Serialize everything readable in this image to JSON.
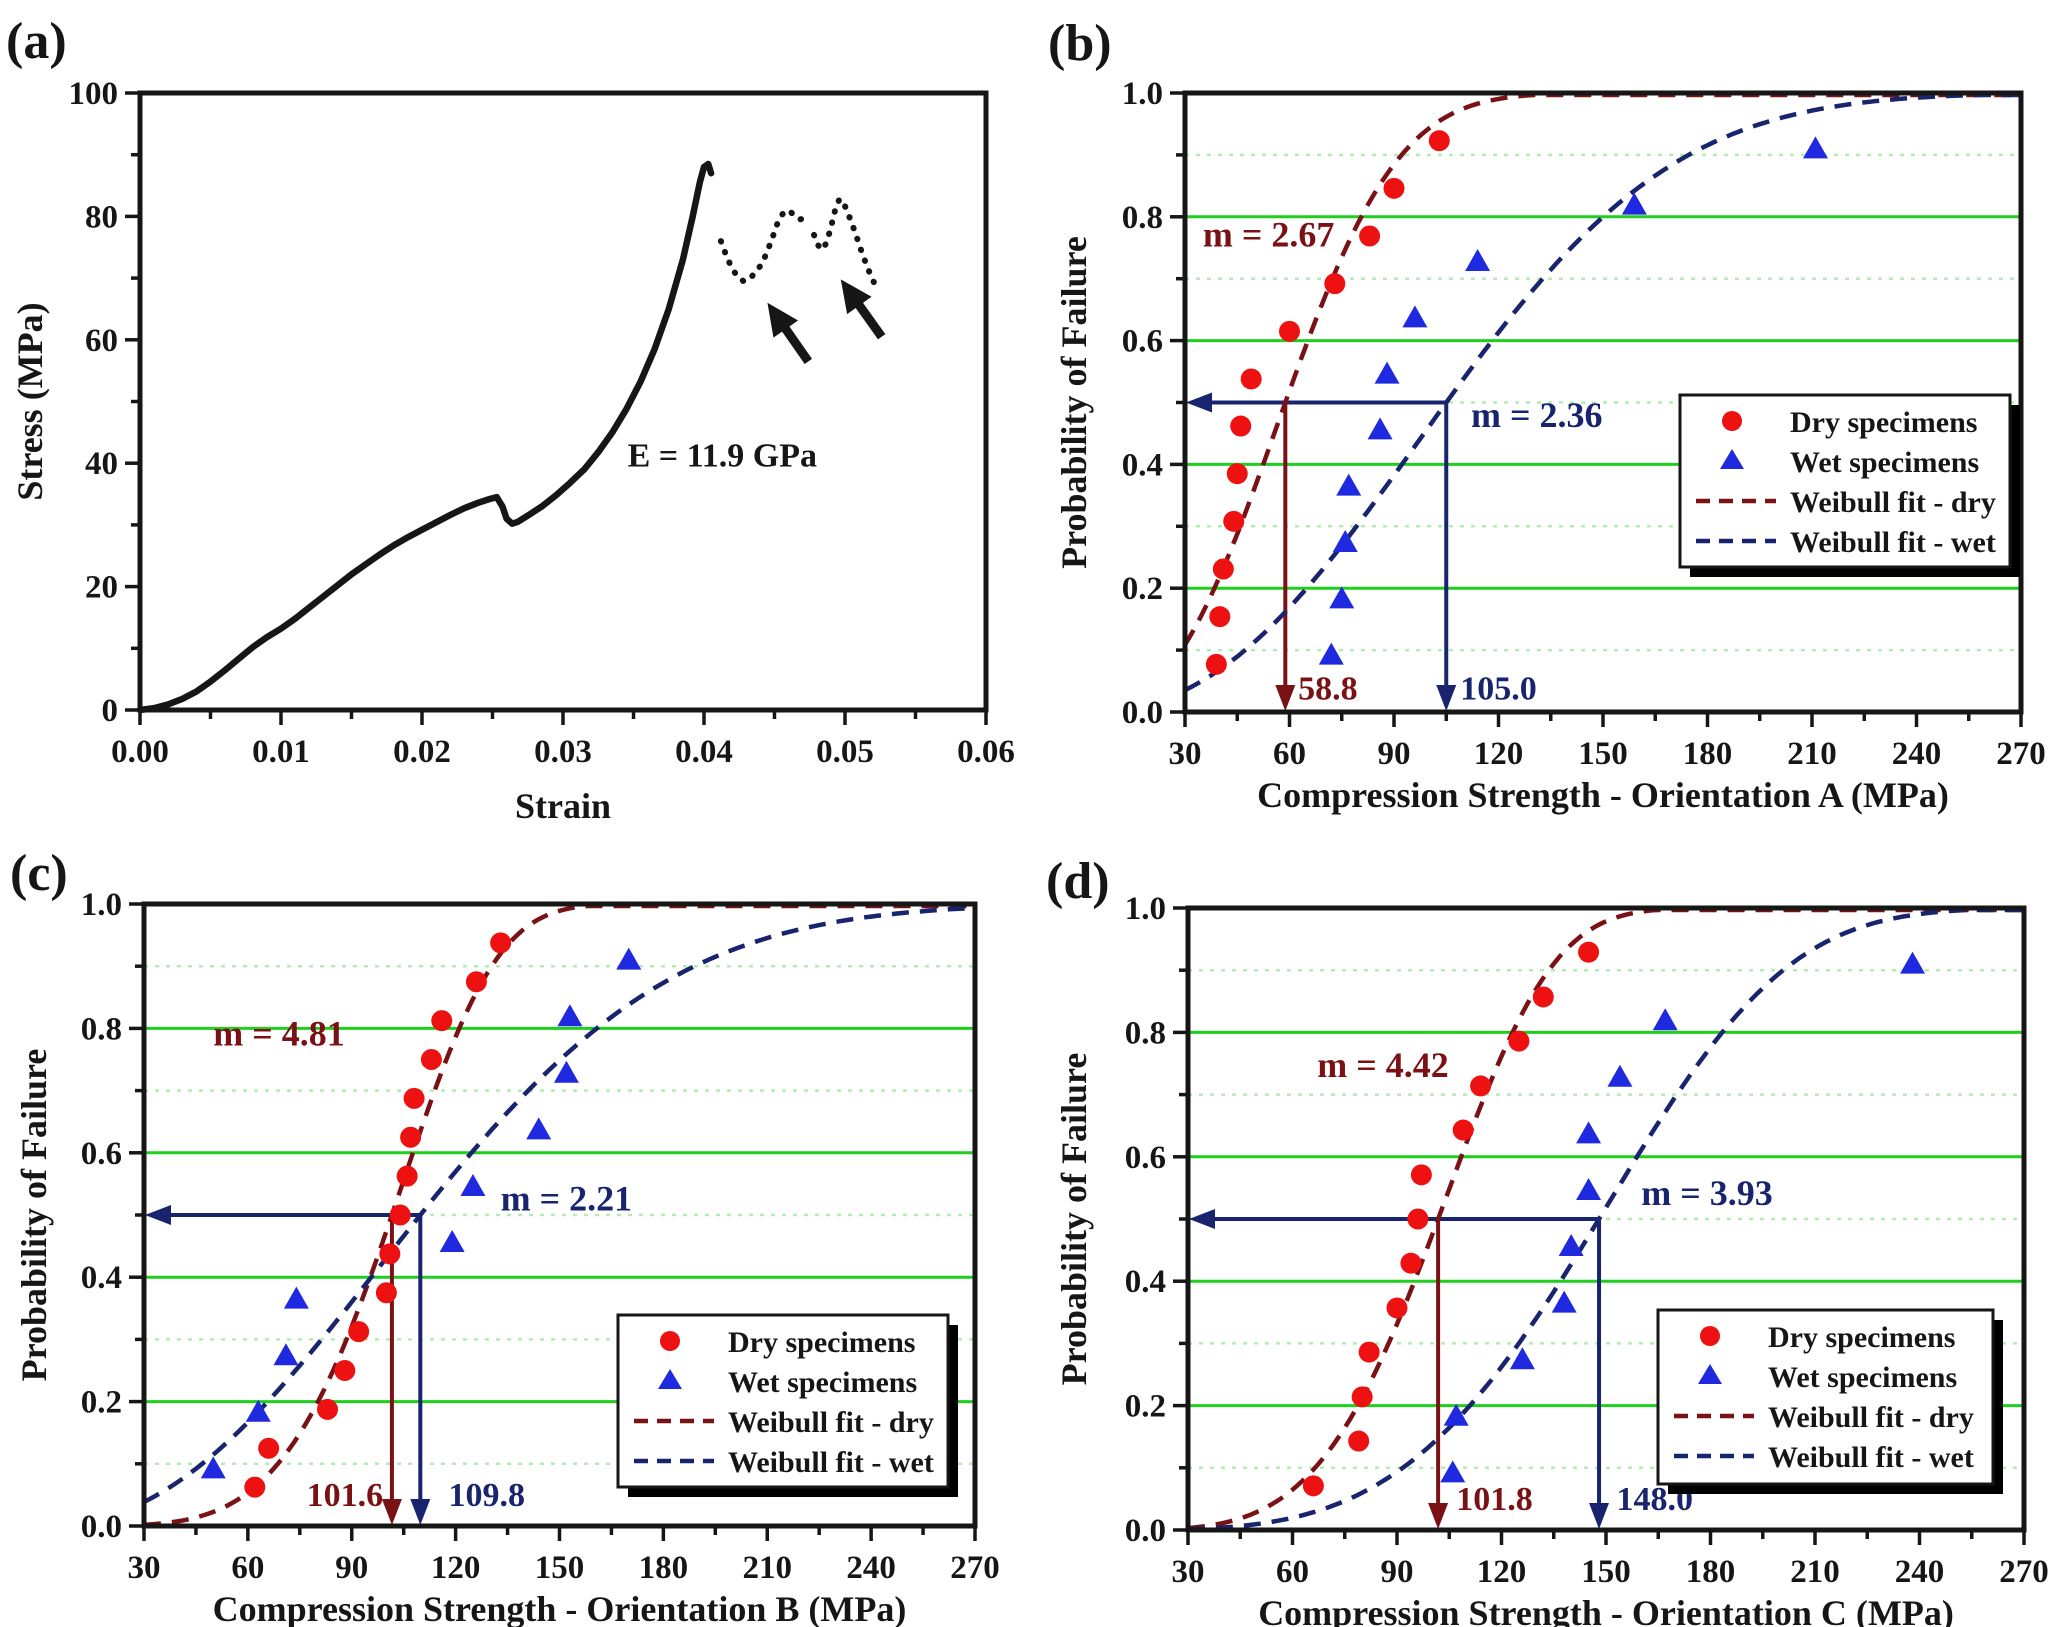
{
  "figure_title": "",
  "colors": {
    "black": "#161616",
    "dry_red": "#ee1111",
    "wet_blue": "#1f2ae0",
    "weibull_dry_darkred": "#7a1115",
    "weibull_wet_navy": "#19246e",
    "grid_major_green": "#1ecf1e",
    "grid_minor_green": "#b5ecb5",
    "background": "#ffffff"
  },
  "legend": {
    "items": [
      {
        "marker": "dry-circle-icon",
        "label": "Dry specimens"
      },
      {
        "marker": "wet-triangle-icon",
        "label": "Wet specimens"
      },
      {
        "marker": "dash-darkred-icon",
        "label": "Weibull fit - dry"
      },
      {
        "marker": "dash-navy-icon",
        "label": "Weibull fit - wet"
      }
    ]
  },
  "chart_data": [
    {
      "id": "a",
      "letter": "(a)",
      "type": "line",
      "xlabel": "Strain",
      "ylabel": "Stress (MPa)",
      "xlim": [
        0,
        0.06
      ],
      "ylim": [
        0,
        100
      ],
      "xticks": [
        0,
        0.01,
        0.02,
        0.03,
        0.04,
        0.05,
        0.06
      ],
      "xtick_labels": [
        "0.00",
        "0.01",
        "0.02",
        "0.03",
        "0.04",
        "0.05",
        "0.06"
      ],
      "yticks": [
        0,
        20,
        40,
        60,
        80,
        100
      ],
      "ytick_labels": [
        "0",
        "20",
        "40",
        "60",
        "80",
        "100"
      ],
      "grid": "off",
      "annotation": {
        "text": "E = 11.9 GPa",
        "x": 0.0413,
        "y": 39.5
      },
      "series": [
        {
          "name": "stress-strain-solid",
          "style": "solid",
          "points": [
            [
              0,
              0
            ],
            [
              0.001,
              0.3
            ],
            [
              0.002,
              0.9
            ],
            [
              0.003,
              1.8
            ],
            [
              0.004,
              3
            ],
            [
              0.005,
              4.6
            ],
            [
              0.006,
              6.4
            ],
            [
              0.007,
              8.3
            ],
            [
              0.008,
              10.2
            ],
            [
              0.009,
              11.8
            ],
            [
              0.01,
              13.2
            ],
            [
              0.011,
              14.8
            ],
            [
              0.012,
              16.6
            ],
            [
              0.013,
              18.4
            ],
            [
              0.014,
              20.2
            ],
            [
              0.015,
              22
            ],
            [
              0.016,
              23.6
            ],
            [
              0.017,
              25.2
            ],
            [
              0.018,
              26.7
            ],
            [
              0.019,
              28
            ],
            [
              0.02,
              29.2
            ],
            [
              0.021,
              30.4
            ],
            [
              0.022,
              31.6
            ],
            [
              0.023,
              32.7
            ],
            [
              0.024,
              33.6
            ],
            [
              0.0248,
              34.2
            ],
            [
              0.0253,
              34.5
            ],
            [
              0.0257,
              33
            ],
            [
              0.026,
              31
            ],
            [
              0.0264,
              30.2
            ],
            [
              0.0268,
              30.5
            ],
            [
              0.0275,
              31.5
            ],
            [
              0.0285,
              33
            ],
            [
              0.0295,
              34.8
            ],
            [
              0.0305,
              36.8
            ],
            [
              0.0315,
              39
            ],
            [
              0.0325,
              41.8
            ],
            [
              0.0335,
              45
            ],
            [
              0.0345,
              48.8
            ],
            [
              0.0355,
              53.2
            ],
            [
              0.0365,
              58.5
            ],
            [
              0.0375,
              65
            ],
            [
              0.0385,
              73
            ],
            [
              0.0392,
              80
            ],
            [
              0.0397,
              85.5
            ],
            [
              0.04,
              88
            ],
            [
              0.0403,
              88.5
            ],
            [
              0.0405,
              87
            ]
          ]
        },
        {
          "name": "post-peak-dotted-1",
          "style": "dotted",
          "points": [
            [
              0.0412,
              76
            ],
            [
              0.0416,
              73.5
            ],
            [
              0.042,
              71.5
            ],
            [
              0.0424,
              70.2
            ],
            [
              0.0428,
              69.5
            ],
            [
              0.0432,
              69.8
            ],
            [
              0.0436,
              70.8
            ],
            [
              0.044,
              72
            ],
            [
              0.0444,
              73.8
            ],
            [
              0.0448,
              76.2
            ],
            [
              0.0452,
              78.8
            ],
            [
              0.0456,
              80.5
            ],
            [
              0.046,
              81
            ],
            [
              0.0464,
              80.2
            ],
            [
              0.0468,
              79.5
            ],
            [
              0.0472,
              79.8
            ]
          ]
        },
        {
          "name": "post-peak-dotted-2",
          "style": "dotted",
          "points": [
            [
              0.0478,
              77
            ],
            [
              0.0481,
              75.3
            ],
            [
              0.0484,
              74.6
            ],
            [
              0.0487,
              75.8
            ],
            [
              0.049,
              78.2
            ],
            [
              0.0493,
              81
            ],
            [
              0.0496,
              82.8
            ],
            [
              0.0499,
              82.2
            ],
            [
              0.0503,
              80
            ],
            [
              0.0507,
              77.5
            ],
            [
              0.0511,
              74.8
            ],
            [
              0.0515,
              72.3
            ],
            [
              0.0519,
              70
            ],
            [
              0.0523,
              68.2
            ]
          ]
        }
      ],
      "arrows": [
        {
          "from": [
            0.0474,
            56.5
          ],
          "to": [
            0.0445,
            66
          ]
        },
        {
          "from": [
            0.0526,
            60.5
          ],
          "to": [
            0.0497,
            69.8
          ]
        }
      ]
    },
    {
      "id": "b",
      "letter": "(b)",
      "type": "scatter",
      "xlabel": "Compression Strength - Orientation A (MPa)",
      "ylabel": "Probability of Failure",
      "xlim": [
        30,
        270
      ],
      "ylim": [
        0,
        1
      ],
      "xticks": [
        30,
        60,
        90,
        120,
        150,
        180,
        210,
        240,
        270
      ],
      "xtick_labels": [
        "30",
        "60",
        "90",
        "120",
        "150",
        "180",
        "210",
        "240",
        "270"
      ],
      "yticks": [
        0,
        0.2,
        0.4,
        0.6,
        0.8,
        1.0
      ],
      "ytick_labels": [
        "0.0",
        "0.2",
        "0.4",
        "0.6",
        "0.8",
        "1.0"
      ],
      "grid": "green major solid at 0.2 steps, pale dotted at 0.1 steps",
      "series": [
        {
          "name": "Dry specimens",
          "marker": "circle",
          "points": [
            [
              39,
              0.077
            ],
            [
              40,
              0.154
            ],
            [
              41,
              0.231
            ],
            [
              44,
              0.308
            ],
            [
              45,
              0.385
            ],
            [
              46,
              0.462
            ],
            [
              49,
              0.538
            ],
            [
              60,
              0.615
            ],
            [
              73,
              0.692
            ],
            [
              83,
              0.769
            ],
            [
              90,
              0.846
            ],
            [
              103,
              0.923
            ]
          ]
        },
        {
          "name": "Wet specimens",
          "marker": "triangle",
          "points": [
            [
              72,
              0.091
            ],
            [
              75,
              0.182
            ],
            [
              76,
              0.273
            ],
            [
              77,
              0.364
            ],
            [
              86,
              0.455
            ],
            [
              88,
              0.545
            ],
            [
              96,
              0.636
            ],
            [
              114,
              0.727
            ],
            [
              159,
              0.818
            ],
            [
              211,
              0.909
            ]
          ]
        }
      ],
      "weibull_fits": [
        {
          "name": "Weibull fit - dry",
          "m": 2.67,
          "median": 58.8
        },
        {
          "name": "Weibull fit - wet",
          "m": 2.36,
          "median": 105.0
        }
      ],
      "m_labels": [
        {
          "text": "m = 2.67",
          "x": 54,
          "y": 0.77,
          "color": "darkred"
        },
        {
          "text": "m = 2.36",
          "x": 131,
          "y": 0.478,
          "color": "navy"
        }
      ],
      "guide": {
        "p": 0.5,
        "dry_x": 58.8,
        "wet_x": 105.0,
        "dry_label": "58.8",
        "dry_label_pos": [
          71,
          0.038
        ],
        "wet_label": "105.0",
        "wet_label_pos": [
          120,
          0.038
        ]
      },
      "legend_pos": [
        640,
        395,
        330,
        172
      ]
    },
    {
      "id": "c",
      "letter": "(c)",
      "type": "scatter",
      "xlabel": "Compression Strength - Orientation B (MPa)",
      "ylabel": "Probability of Failure",
      "xlim": [
        30,
        270
      ],
      "ylim": [
        0,
        1
      ],
      "xticks": [
        30,
        60,
        90,
        120,
        150,
        180,
        210,
        240,
        270
      ],
      "xtick_labels": [
        "30",
        "60",
        "90",
        "120",
        "150",
        "180",
        "210",
        "240",
        "270"
      ],
      "yticks": [
        0,
        0.2,
        0.4,
        0.6,
        0.8,
        1.0
      ],
      "ytick_labels": [
        "0.0",
        "0.2",
        "0.4",
        "0.6",
        "0.8",
        "1.0"
      ],
      "grid": "green major solid at 0.2 steps, pale dotted at 0.1 steps",
      "series": [
        {
          "name": "Dry specimens",
          "marker": "circle",
          "points": [
            [
              62,
              0.0625
            ],
            [
              66,
              0.125
            ],
            [
              83,
              0.1875
            ],
            [
              88,
              0.25
            ],
            [
              92,
              0.3125
            ],
            [
              100,
              0.375
            ],
            [
              101,
              0.4375
            ],
            [
              104,
              0.5
            ],
            [
              106,
              0.5625
            ],
            [
              107,
              0.625
            ],
            [
              108,
              0.6875
            ],
            [
              113,
              0.75
            ],
            [
              116,
              0.8125
            ],
            [
              126,
              0.875
            ],
            [
              133,
              0.9375
            ]
          ]
        },
        {
          "name": "Wet specimens",
          "marker": "triangle",
          "points": [
            [
              50,
              0.091
            ],
            [
              63,
              0.182
            ],
            [
              71,
              0.273
            ],
            [
              74,
              0.364
            ],
            [
              119,
              0.455
            ],
            [
              125,
              0.545
            ],
            [
              144,
              0.636
            ],
            [
              152,
              0.727
            ],
            [
              153,
              0.818
            ],
            [
              170,
              0.909
            ]
          ]
        }
      ],
      "weibull_fits": [
        {
          "name": "Weibull fit - dry",
          "m": 4.81,
          "median": 101.6
        },
        {
          "name": "Weibull fit - wet",
          "m": 2.21,
          "median": 109.8
        }
      ],
      "m_labels": [
        {
          "text": "m = 4.81",
          "x": 69,
          "y": 0.79,
          "color": "darkred"
        },
        {
          "text": "m = 2.21",
          "x": 152,
          "y": 0.525,
          "color": "navy"
        }
      ],
      "guide": {
        "p": 0.5,
        "dry_x": 101.6,
        "wet_x": 109.8,
        "dry_label": "101.6",
        "dry_label_pos": [
          88,
          0.05
        ],
        "wet_label": "109.8",
        "wet_label_pos": [
          129,
          0.05
        ]
      },
      "legend_pos": [
        618,
        485,
        330,
        172
      ]
    },
    {
      "id": "d",
      "letter": "(d)",
      "type": "scatter",
      "xlabel": "Compression Strength - Orientation C (MPa)",
      "ylabel": "Probability of Failure",
      "xlim": [
        30,
        270
      ],
      "ylim": [
        0,
        1
      ],
      "xticks": [
        30,
        60,
        90,
        120,
        150,
        180,
        210,
        240,
        270
      ],
      "xtick_labels": [
        "30",
        "60",
        "90",
        "120",
        "150",
        "180",
        "210",
        "240",
        "270"
      ],
      "yticks": [
        0,
        0.2,
        0.4,
        0.6,
        0.8,
        1.0
      ],
      "ytick_labels": [
        "0.0",
        "0.2",
        "0.4",
        "0.6",
        "0.8",
        "1.0"
      ],
      "grid": "green major solid at 0.2 steps, pale dotted at 0.1 steps",
      "series": [
        {
          "name": "Dry specimens",
          "marker": "circle",
          "points": [
            [
              66,
              0.071
            ],
            [
              79,
              0.143
            ],
            [
              80,
              0.214
            ],
            [
              82,
              0.286
            ],
            [
              90,
              0.357
            ],
            [
              94,
              0.429
            ],
            [
              96,
              0.5
            ],
            [
              97,
              0.571
            ],
            [
              109,
              0.643
            ],
            [
              114,
              0.714
            ],
            [
              125,
              0.786
            ],
            [
              132,
              0.857
            ],
            [
              145,
              0.929
            ]
          ]
        },
        {
          "name": "Wet specimens",
          "marker": "triangle",
          "points": [
            [
              106,
              0.091
            ],
            [
              107,
              0.182
            ],
            [
              126,
              0.273
            ],
            [
              138,
              0.364
            ],
            [
              140,
              0.455
            ],
            [
              145,
              0.545
            ],
            [
              145,
              0.636
            ],
            [
              154,
              0.727
            ],
            [
              167,
              0.818
            ],
            [
              238,
              0.909
            ]
          ]
        }
      ],
      "weibull_fits": [
        {
          "name": "Weibull fit - dry",
          "m": 4.42,
          "median": 101.8
        },
        {
          "name": "Weibull fit - wet",
          "m": 3.93,
          "median": 148.0
        }
      ],
      "m_labels": [
        {
          "text": "m = 4.42",
          "x": 86,
          "y": 0.746,
          "color": "darkred"
        },
        {
          "text": "m = 3.93",
          "x": 179,
          "y": 0.54,
          "color": "navy"
        }
      ],
      "guide": {
        "p": 0.5,
        "dry_x": 101.8,
        "wet_x": 148.0,
        "dry_label": "101.8",
        "dry_label_pos": [
          118,
          0.05
        ],
        "wet_label": "148.0",
        "wet_label_pos": [
          164,
          0.05
        ]
      },
      "legend_pos": [
        618,
        480,
        335,
        174
      ]
    }
  ]
}
